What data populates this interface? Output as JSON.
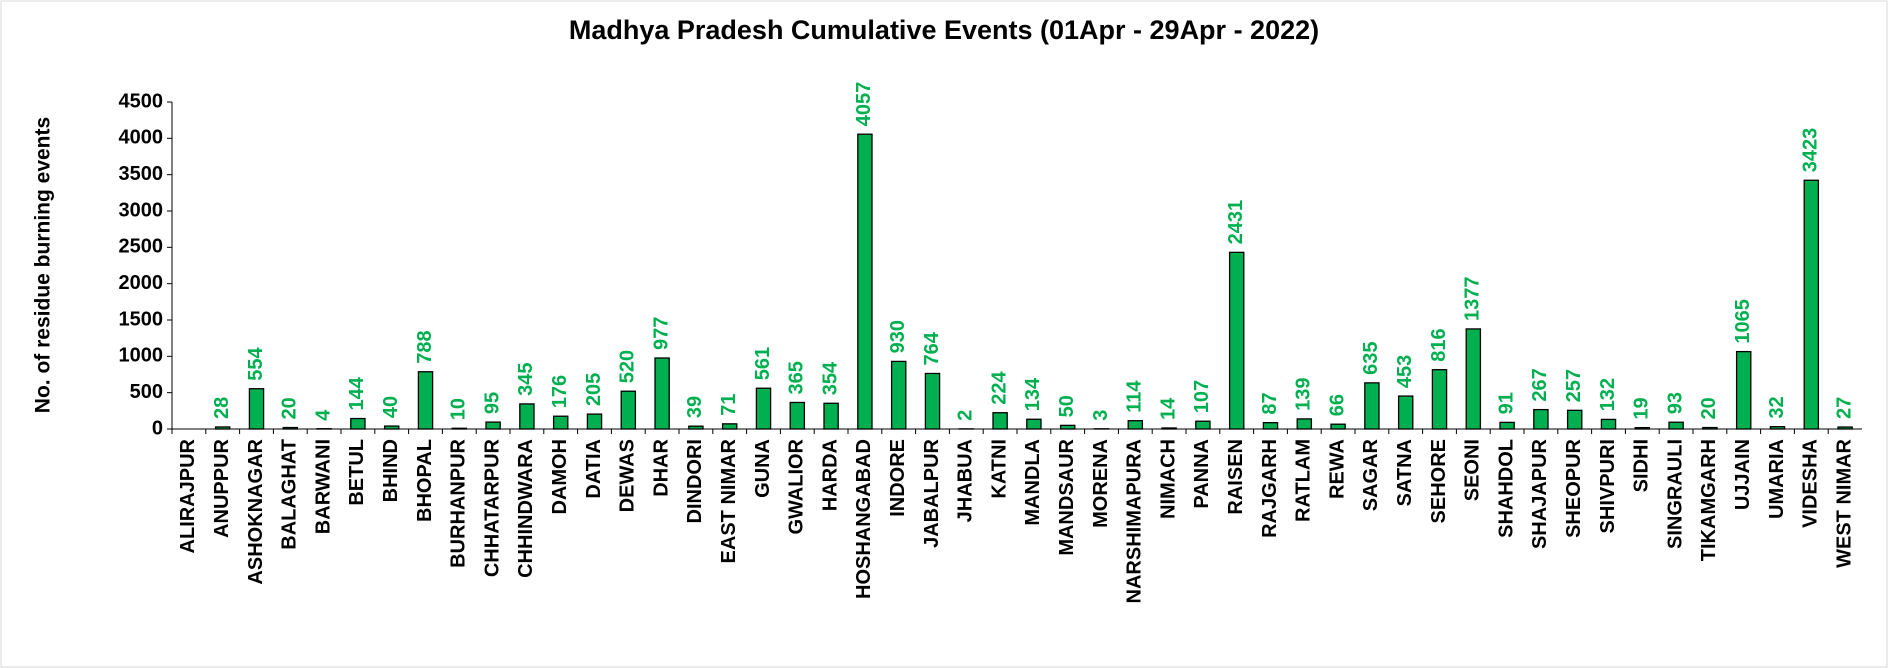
{
  "chart_data": {
    "type": "bar",
    "title": "Madhya Pradesh Cumulative Events (01Apr - 29Apr - 2022)",
    "y_label": "No. of residue burning events",
    "categories": [
      "ALIRAJPUR",
      "ANUPPUR",
      "ASHOKNAGAR",
      "BALAGHAT",
      "BARWANI",
      "BETUL",
      "BHIND",
      "BHOPAL",
      "BURHANPUR",
      "CHHATARPUR",
      "CHHINDWARA",
      "DAMOH",
      "DATIA",
      "DEWAS",
      "DHAR",
      "DINDORI",
      "EAST NIMAR",
      "GUNA",
      "GWALIOR",
      "HARDA",
      "HOSHANGABAD",
      "INDORE",
      "JABALPUR",
      "JHABUA",
      "KATNI",
      "MANDLA",
      "MANDSAUR",
      "MORENA",
      "NARSHIMAPURA",
      "NIMACH",
      "PANNA",
      "RAISEN",
      "RAJGARH",
      "RATLAM",
      "REWA",
      "SAGAR",
      "SATNA",
      "SEHORE",
      "SEONI",
      "SHAHDOL",
      "SHAJAPUR",
      "SHEOPUR",
      "SHIVPURI",
      "SIDHI",
      "SINGRAULI",
      "TIKAMGARH",
      "UJJAIN",
      "UMARIA",
      "VIDESHA",
      "WEST NIMAR"
    ],
    "values": [
      null,
      28,
      554,
      20,
      4,
      144,
      40,
      788,
      10,
      95,
      345,
      176,
      205,
      520,
      977,
      39,
      71,
      561,
      365,
      354,
      4057,
      930,
      764,
      2,
      224,
      134,
      50,
      3,
      114,
      14,
      107,
      2431,
      87,
      139,
      66,
      635,
      453,
      816,
      1377,
      91,
      267,
      257,
      132,
      19,
      93,
      20,
      1065,
      32,
      3423,
      27
    ],
    "color": "#00b050",
    "label_color": "#00b050",
    "ylim": [
      0,
      4500
    ],
    "yticks": [
      0,
      500,
      1000,
      1500,
      2000,
      2500,
      3000,
      3500,
      4000,
      4500
    ],
    "grid": false
  }
}
